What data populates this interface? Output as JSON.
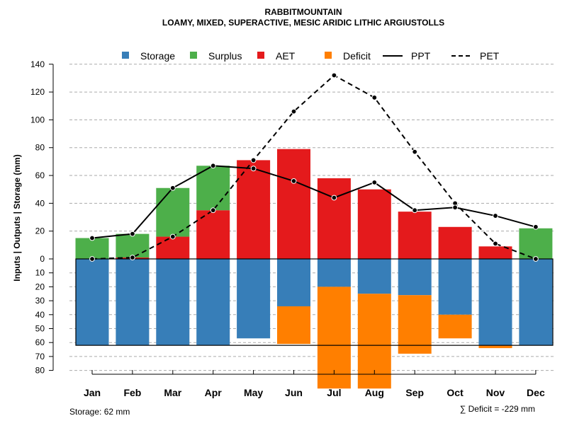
{
  "chart_data": {
    "type": "bar",
    "title": "RABBITMOUNTAIN",
    "subtitle": "LOAMY, MIXED, SUPERACTIVE, MESIC ARIDIC LITHIC ARGIUSTOLLS",
    "ylabel": "Inputs | Outputs | Storage    (mm)",
    "ylim": [
      -80,
      140
    ],
    "yticks_pos": [
      "0",
      "20",
      "40",
      "60",
      "80",
      "100",
      "120",
      "140"
    ],
    "yticks_neg": [
      "10",
      "20",
      "30",
      "40",
      "50",
      "60",
      "70",
      "80"
    ],
    "categories": [
      "Jan",
      "Feb",
      "Mar",
      "Apr",
      "May",
      "Jun",
      "Jul",
      "Aug",
      "Sep",
      "Oct",
      "Nov",
      "Dec"
    ],
    "legend": [
      {
        "name": "Storage",
        "kind": "box",
        "color": "#377EB8"
      },
      {
        "name": "Surplus",
        "kind": "box",
        "color": "#4DAF4A"
      },
      {
        "name": "AET",
        "kind": "box",
        "color": "#E41A1C"
      },
      {
        "name": "Deficit",
        "kind": "box",
        "color": "#FF7F00"
      },
      {
        "name": "PPT",
        "kind": "solid",
        "color": "#000000"
      },
      {
        "name": "PET",
        "kind": "dashed",
        "color": "#000000"
      }
    ],
    "colors": {
      "storage": "#377EB8",
      "surplus": "#4DAF4A",
      "aet": "#E41A1C",
      "deficit": "#FF7F00"
    },
    "aet": [
      0,
      1,
      16,
      35,
      71,
      79,
      58,
      50,
      34,
      23,
      9,
      0
    ],
    "surplus": [
      15,
      17,
      35,
      32,
      0,
      0,
      0,
      0,
      0,
      0,
      0,
      22
    ],
    "storage": [
      62,
      62,
      62,
      62,
      57,
      34,
      20,
      25,
      26,
      40,
      62,
      62
    ],
    "deficit": [
      0,
      0,
      0,
      0,
      0,
      27,
      73,
      68,
      42,
      17,
      2,
      0
    ],
    "ppt": [
      15,
      18,
      51,
      67,
      65,
      56,
      44,
      55,
      35,
      37,
      31,
      23
    ],
    "pet": [
      0,
      1,
      16,
      35,
      71,
      106,
      132,
      116,
      77,
      40,
      11,
      0
    ],
    "storage_capacity": 62,
    "storage_note": "Storage: 62 mm",
    "deficit_note": "∑ Deficit = -229 mm"
  }
}
